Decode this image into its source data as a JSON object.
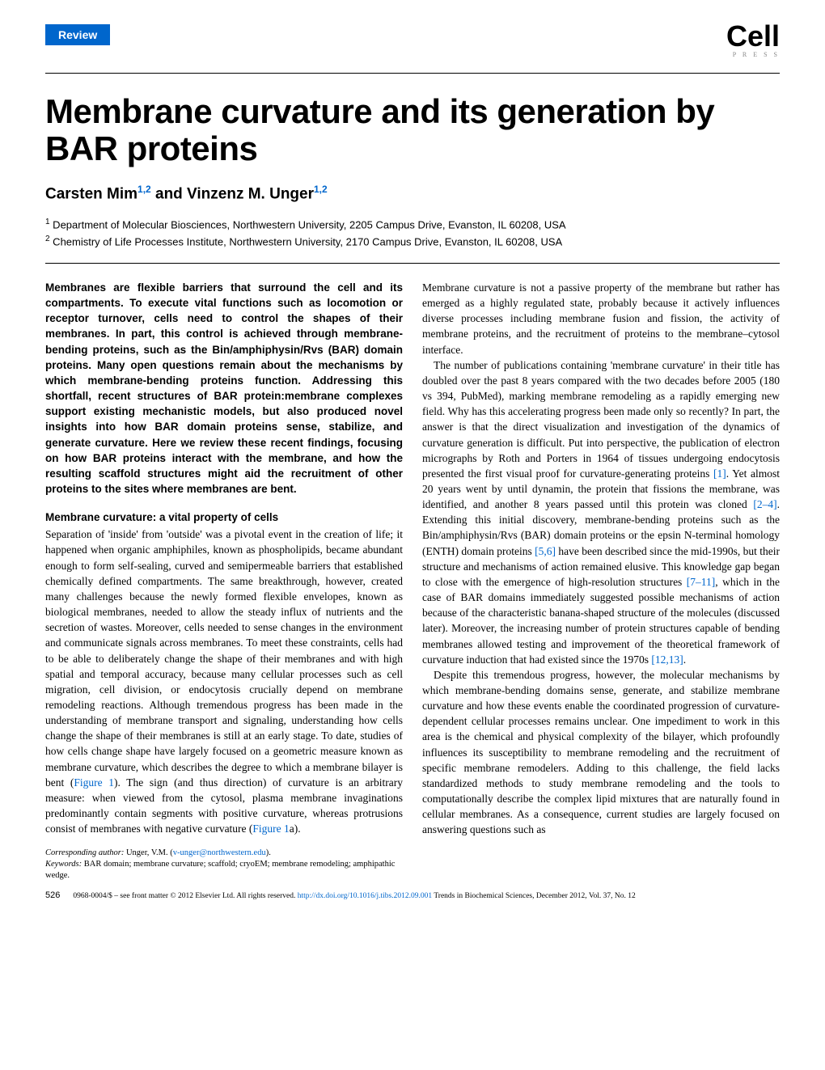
{
  "header": {
    "badge": "Review",
    "logo_main": "Cell",
    "logo_sub": "P R E S S"
  },
  "title": "Membrane curvature and its generation by BAR proteins",
  "authors": {
    "text_prefix": "Carsten Mim",
    "sup1": "1,2",
    "text_mid": " and Vinzenz M. Unger",
    "sup2": "1,2"
  },
  "affiliations": {
    "aff1_sup": "1",
    "aff1": " Department of Molecular Biosciences, Northwestern University, 2205 Campus Drive, Evanston, IL 60208, USA",
    "aff2_sup": "2",
    "aff2": " Chemistry of Life Processes Institute, Northwestern University, 2170 Campus Drive, Evanston, IL 60208, USA"
  },
  "abstract": "Membranes are flexible barriers that surround the cell and its compartments. To execute vital functions such as locomotion or receptor turnover, cells need to control the shapes of their membranes. In part, this control is achieved through membrane-bending proteins, such as the Bin/amphiphysin/Rvs (BAR) domain proteins. Many open questions remain about the mechanisms by which membrane-bending proteins function. Addressing this shortfall, recent structures of BAR protein:membrane complexes support existing mechanistic models, but also produced novel insights into how BAR domain proteins sense, stabilize, and generate curvature. Here we review these recent findings, focusing on how BAR proteins interact with the membrane, and how the resulting scaffold structures might aid the recruitment of other proteins to the sites where membranes are bent.",
  "section1_heading": "Membrane curvature: a vital property of cells",
  "col1_para1a": "Separation of 'inside' from 'outside' was a pivotal event in the creation of life; it happened when organic amphiphiles, known as phospholipids, became abundant enough to form self-sealing, curved and semipermeable barriers that established chemically defined compartments. The same breakthrough, however, created many challenges because the newly formed flexible envelopes, known as biological membranes, needed to allow the steady influx of nutrients and the secretion of wastes. Moreover, cells needed to sense changes in the environment and communicate signals across membranes. To meet these constraints, cells had to be able to deliberately change the shape of their membranes and with high spatial and temporal accuracy, because many cellular processes such as cell migration, cell division, or endocytosis crucially depend on membrane remodeling reactions. Although tremendous progress has been made in the understanding of membrane transport and signaling, understanding how cells change the shape of their membranes is still at an early stage. To date, studies of how cells change shape have largely focused on a geometric measure known as membrane curvature, which describes the degree to which a membrane bilayer is bent (",
  "col1_fig1": "Figure 1",
  "col1_para1b": "). The sign (and thus direction) of curvature is an arbitrary measure: when viewed from the cytosol, plasma membrane invaginations predominantly contain segments with positive curvature, whereas protrusions consist of membranes with negative curvature (",
  "col1_fig1a": "Figure 1",
  "col1_para1c": "a).",
  "corresponding_label": "Corresponding author:",
  "corresponding_name": " Unger, V.M. (",
  "corresponding_email": "v-unger@northwestern.edu",
  "corresponding_close": ").",
  "keywords_label": "Keywords:",
  "keywords_text": " BAR domain; membrane curvature; scaffold; cryoEM; membrane remodeling; amphipathic wedge.",
  "col2_para1": "Membrane curvature is not a passive property of the membrane but rather has emerged as a highly regulated state, probably because it actively influences diverse processes including membrane fusion and fission, the activity of membrane proteins, and the recruitment of proteins to the membrane–cytosol interface.",
  "col2_para2a": "The number of publications containing 'membrane curvature' in their title has doubled over the past 8 years compared with the two decades before 2005 (180 vs 394, PubMed), marking membrane remodeling as a rapidly emerging new field. Why has this accelerating progress been made only so recently? In part, the answer is that the direct visualization and investigation of the dynamics of curvature generation is difficult. Put into perspective, the publication of electron micrographs by Roth and Porters in 1964 of tissues undergoing endocytosis presented the first visual proof for curvature-generating proteins ",
  "col2_ref1": "[1]",
  "col2_para2b": ". Yet almost 20 years went by until dynamin, the protein that fissions the membrane, was identified, and another 8 years passed until this protein was cloned ",
  "col2_ref2": "[2–4]",
  "col2_para2c": ". Extending this initial discovery, membrane-bending proteins such as the Bin/amphiphysin/Rvs (BAR) domain proteins or the epsin N-terminal homology (ENTH) domain proteins ",
  "col2_ref3": "[5,6]",
  "col2_para2d": " have been described since the mid-1990s, but their structure and mechanisms of action remained elusive. This knowledge gap began to close with the emergence of high-resolution structures ",
  "col2_ref4": "[7–11]",
  "col2_para2e": ", which in the case of BAR domains immediately suggested possible mechanisms of action because of the characteristic banana-shaped structure of the molecules (discussed later). Moreover, the increasing number of protein structures capable of bending membranes allowed testing and improvement of the theoretical framework of curvature induction that had existed since the 1970s ",
  "col2_ref5": "[12,13]",
  "col2_para2f": ".",
  "col2_para3": "Despite this tremendous progress, however, the molecular mechanisms by which membrane-bending domains sense, generate, and stabilize membrane curvature and how these events enable the coordinated progression of curvature-dependent cellular processes remains unclear. One impediment to work in this area is the chemical and physical complexity of the bilayer, which profoundly influences its susceptibility to membrane remodeling and the recruitment of specific membrane remodelers. Adding to this challenge, the field lacks standardized methods to study membrane remodeling and the tools to computationally describe the complex lipid mixtures that are naturally found in cellular membranes. As a consequence, current studies are largely focused on answering questions such as",
  "footer": {
    "page_num": "526",
    "copyright_pre": "0968-0004/$ – see front matter © 2012 Elsevier Ltd. All rights reserved. ",
    "doi": "http://dx.doi.org/10.1016/j.tibs.2012.09.001",
    "journal": " Trends in Biochemical Sciences, December 2012, Vol. 37, No. 12"
  },
  "colors": {
    "link": "#0066cc",
    "badge_bg": "#0066cc",
    "text": "#000000"
  }
}
